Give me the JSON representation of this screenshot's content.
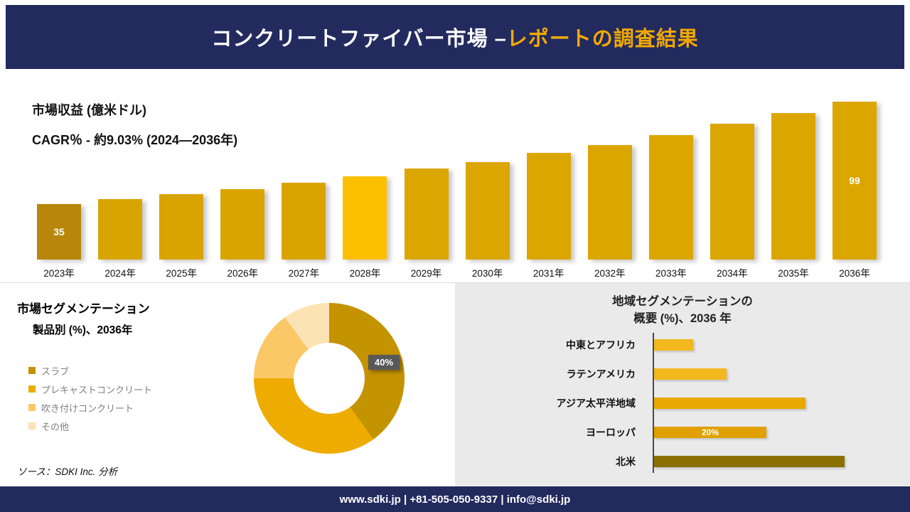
{
  "header": {
    "title_main": "コンクリートファイバー市場 –",
    "title_accent": "レポートの調査結果"
  },
  "colors": {
    "navy": "#232a5e",
    "accent_gold": "#f2a900",
    "callout_bg": "#595959"
  },
  "product_section": {
    "title_line1": "市場セグメンテーション",
    "title_line2": "製品別 (%)、2036年"
  },
  "region_section": {
    "title_line1": "地域セグメンテーションの",
    "title_line2": "概要 (%)、2036 年"
  },
  "source_note": "ソース：SDKI Inc. 分析",
  "footer": {
    "text": "www.sdki.jp | +81-505-050-9337 | info@sdki.jp"
  },
  "chart_data": [
    {
      "type": "bar",
      "title": "市場収益 (億米ドル)",
      "subtitle": "CAGR％ - 約9.03% (2024―2036年)",
      "categories": [
        "2023年",
        "2024年",
        "2025年",
        "2026年",
        "2027年",
        "2028年",
        "2029年",
        "2030年",
        "2031年",
        "2032年",
        "2033年",
        "2034年",
        "2035年",
        "2036年"
      ],
      "values": [
        35,
        38,
        41,
        44,
        48,
        52,
        57,
        61,
        67,
        72,
        78,
        85,
        92,
        99
      ],
      "ylim": [
        0,
        99
      ],
      "grid": false,
      "legend_position": "none",
      "bar_colors": [
        "#b8860b",
        "#d9a400",
        "#d9a400",
        "#d9a400",
        "#d9a400",
        "#fdc000",
        "#dca600",
        "#dca600",
        "#dca600",
        "#dca600",
        "#dca600",
        "#dca600",
        "#dca600",
        "#dca600"
      ],
      "value_labels": [
        {
          "index": 0,
          "text": "35"
        },
        {
          "index": 13,
          "text": "99"
        }
      ]
    },
    {
      "type": "pie",
      "donut": true,
      "title": "市場セグメンテーション 製品別 (%)、2036年",
      "labels": [
        "スラブ",
        "プレキャストコンクリート",
        "吹き付けコンクリート",
        "その他"
      ],
      "values": [
        40,
        35,
        15,
        10
      ],
      "colors": [
        "#c49300",
        "#eeac00",
        "#fbc867",
        "#fbe3b4"
      ],
      "legend_position": "left",
      "shown_labels": [
        {
          "index": 0,
          "text": "40%"
        }
      ]
    },
    {
      "type": "bar",
      "orientation": "horizontal",
      "title": "地域セグメンテーションの概要 (%)、2036 年",
      "categories": [
        "中東とアフリカ",
        "ラテンアメリカ",
        "アジア太平洋地域",
        "ヨーロッパ",
        "北米"
      ],
      "values": [
        7,
        13,
        27,
        20,
        34
      ],
      "xlim": [
        0,
        40
      ],
      "grid": false,
      "legend_position": "none",
      "bar_colors": [
        "#f3b81e",
        "#f3b81e",
        "#e8a800",
        "#dfa000",
        "#8a7000"
      ],
      "value_labels": [
        {
          "index": 3,
          "text": "20%"
        }
      ]
    }
  ]
}
